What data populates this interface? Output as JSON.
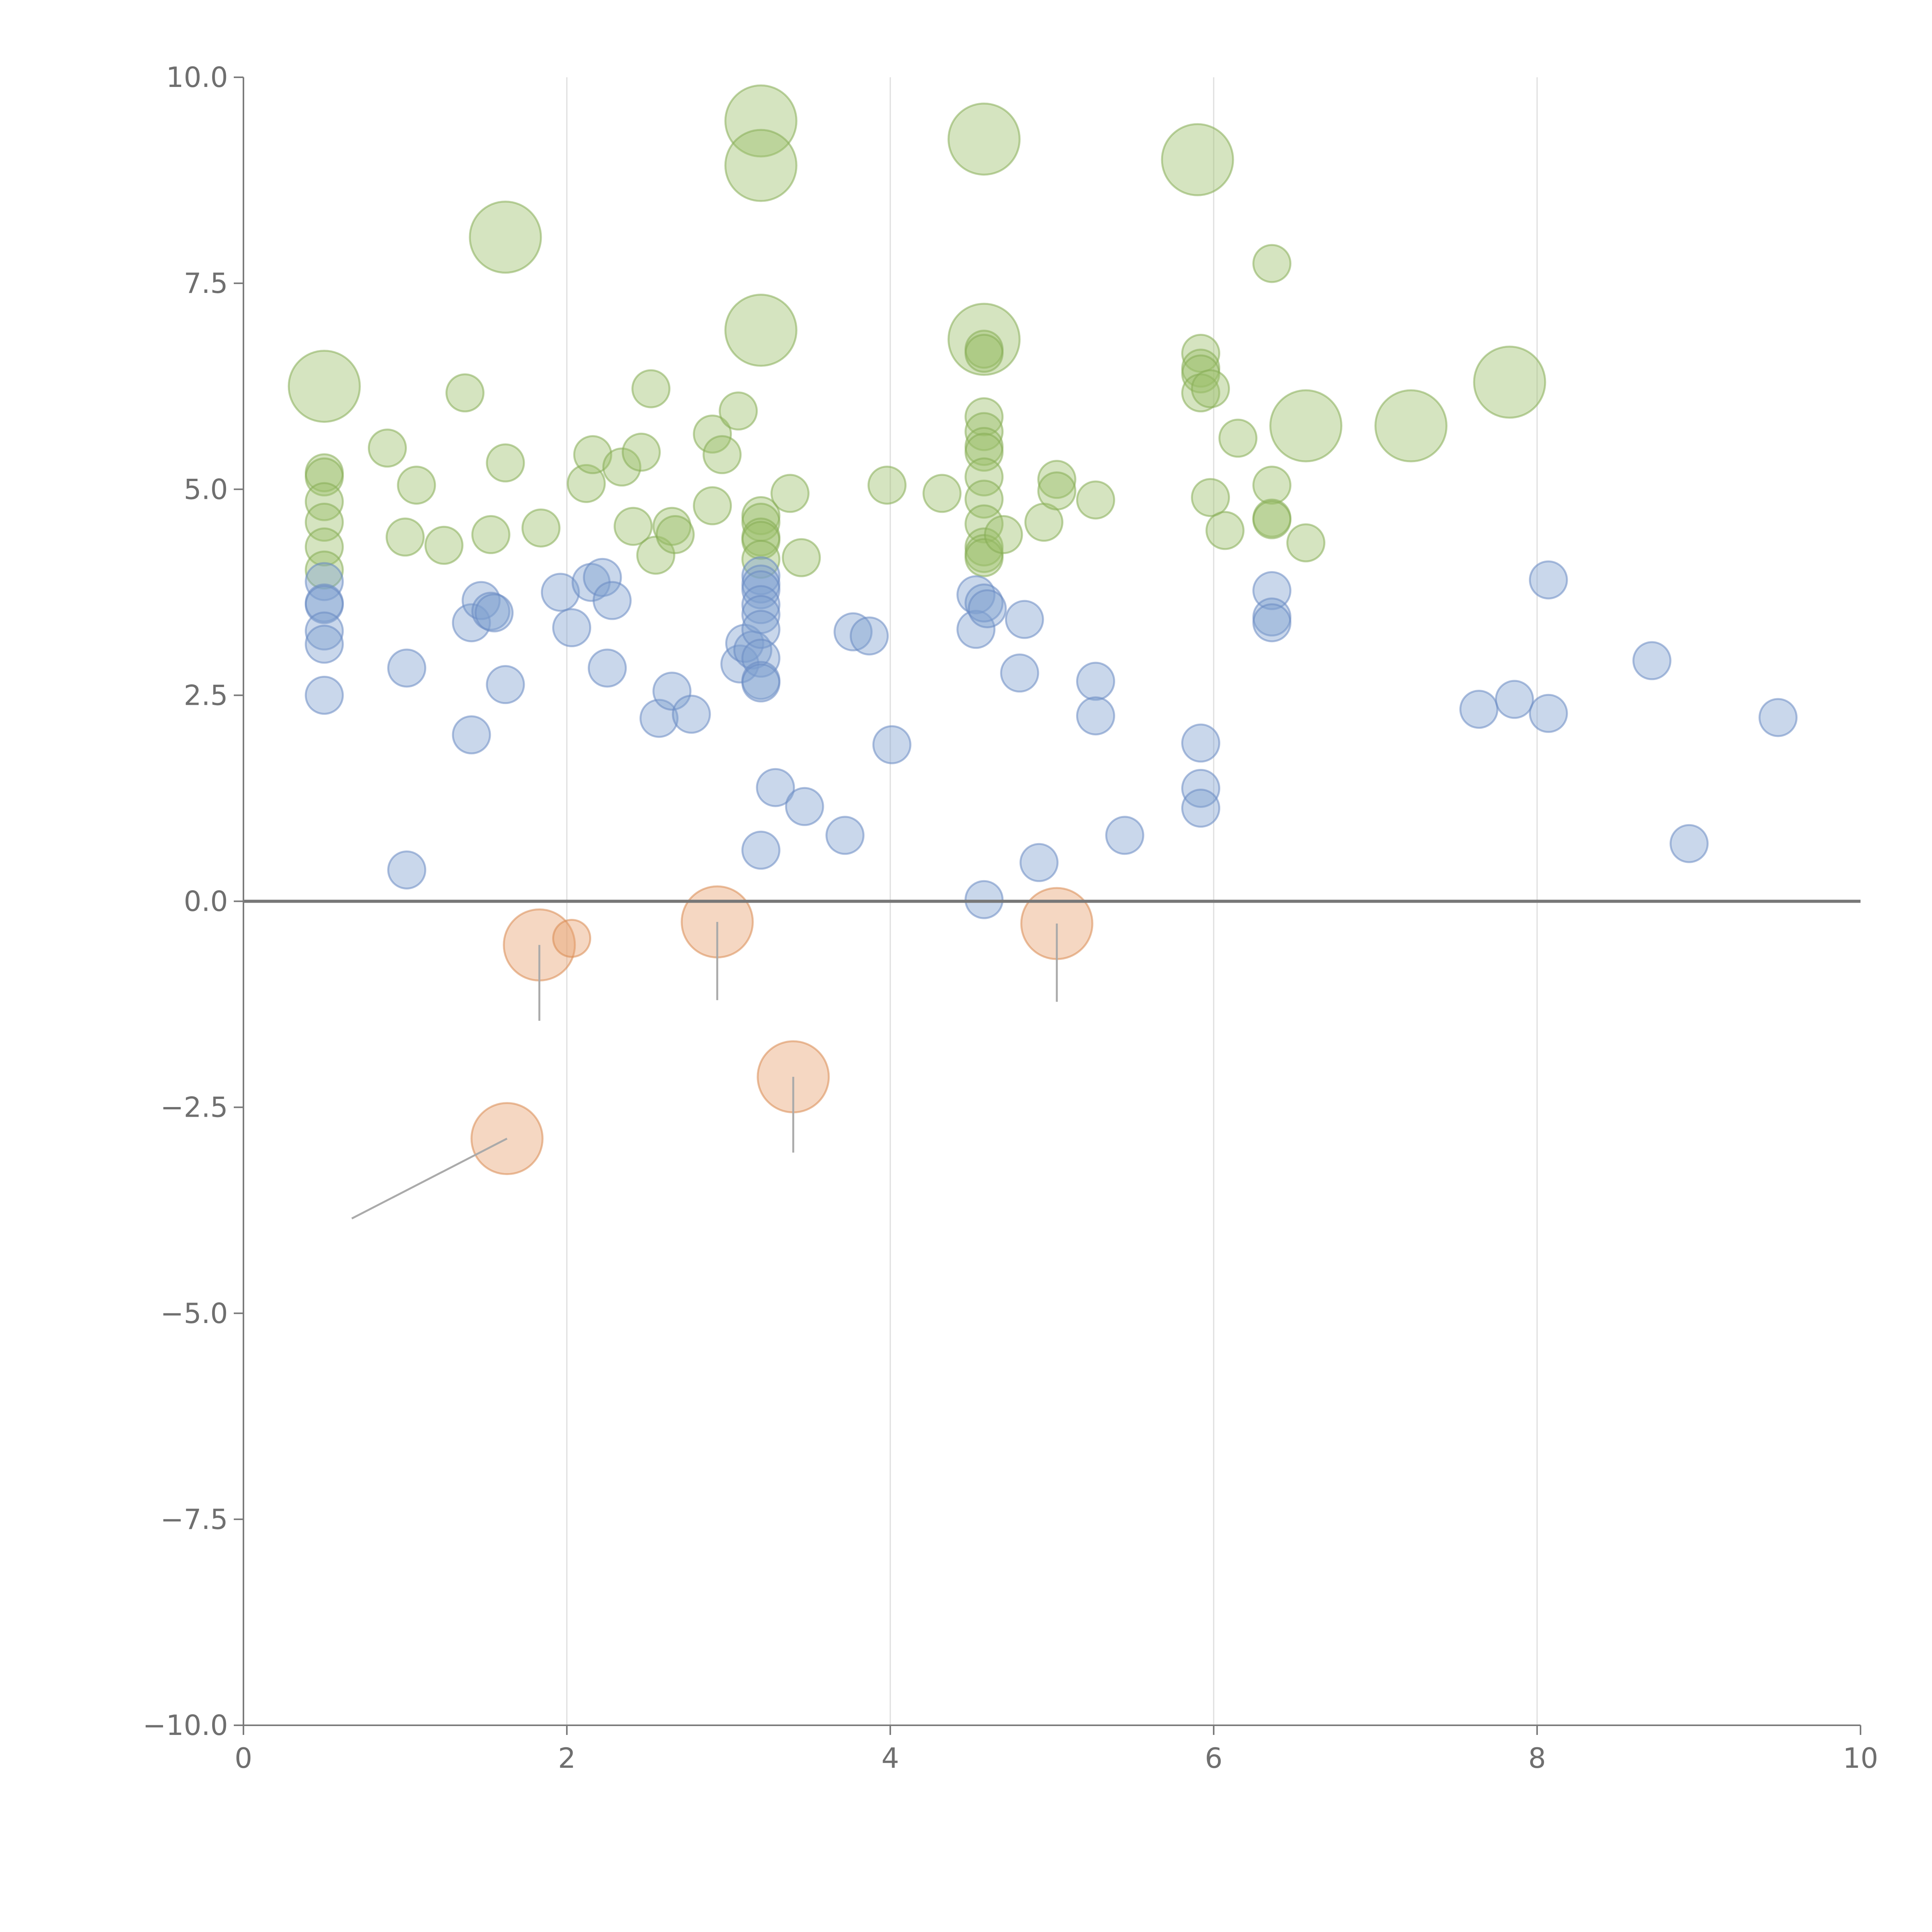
{
  "chart_data": {
    "type": "scatter",
    "title": "",
    "xlabel": "",
    "ylabel": "",
    "xlim": [
      0,
      10
    ],
    "ylim": [
      -10,
      10
    ],
    "x_ticks": [
      0,
      2,
      4,
      6,
      8,
      10
    ],
    "x_tick_labels": [
      "0",
      "2",
      "4",
      "6",
      "8",
      "10"
    ],
    "y_ticks": [
      10,
      7.5,
      5,
      2.5,
      0,
      -2.5,
      -5,
      -7.5,
      -10
    ],
    "y_tick_labels": [
      "10.0",
      "7.5",
      "5.0",
      "2.5",
      "0.0",
      "−2.5",
      "−5.0",
      "−7.5",
      "−10.0"
    ],
    "vertical_grid": [
      2,
      4,
      6,
      8
    ],
    "zero_line": 0,
    "series": [
      {
        "name": "green",
        "color": "#9cbf6a",
        "stroke": "#86ad55",
        "points": [
          [
            0.5,
            6.25,
            2
          ],
          [
            1.62,
            8.06,
            2
          ],
          [
            3.2,
            9.47,
            2
          ],
          [
            3.2,
            8.93,
            2
          ],
          [
            3.2,
            6.93,
            2
          ],
          [
            4.58,
            9.25,
            2
          ],
          [
            4.58,
            6.82,
            2
          ],
          [
            5.9,
            9.0,
            2
          ],
          [
            6.57,
            5.77,
            2
          ],
          [
            7.22,
            5.77,
            2
          ],
          [
            7.83,
            6.3,
            2
          ],
          [
            6.36,
            7.74,
            1
          ],
          [
            0.5,
            5.2,
            1
          ],
          [
            0.5,
            5.15,
            1
          ],
          [
            0.5,
            4.85,
            1
          ],
          [
            0.5,
            4.6,
            1
          ],
          [
            0.5,
            4.3,
            1
          ],
          [
            0.5,
            4.02,
            1
          ],
          [
            0.89,
            5.5,
            1
          ],
          [
            1.07,
            5.05,
            1
          ],
          [
            1.0,
            4.42,
            1
          ],
          [
            1.24,
            4.32,
            1
          ],
          [
            1.37,
            6.17,
            1
          ],
          [
            1.53,
            4.45,
            1
          ],
          [
            1.62,
            5.32,
            1
          ],
          [
            1.84,
            4.53,
            1
          ],
          [
            2.12,
            5.07,
            1
          ],
          [
            2.16,
            5.42,
            1
          ],
          [
            2.34,
            5.27,
            1
          ],
          [
            2.41,
            4.55,
            1
          ],
          [
            2.46,
            5.45,
            1
          ],
          [
            2.52,
            6.22,
            1
          ],
          [
            2.55,
            4.2,
            1
          ],
          [
            2.65,
            4.55,
            1
          ],
          [
            2.67,
            4.45,
            1
          ],
          [
            2.9,
            4.8,
            1
          ],
          [
            2.9,
            5.67,
            1
          ],
          [
            2.96,
            5.42,
            1
          ],
          [
            3.06,
            5.95,
            1
          ],
          [
            3.2,
            4.68,
            1
          ],
          [
            3.2,
            4.6,
            1
          ],
          [
            3.2,
            4.42,
            1
          ],
          [
            3.2,
            4.38,
            1
          ],
          [
            3.2,
            4.15,
            1
          ],
          [
            3.38,
            4.95,
            1
          ],
          [
            3.45,
            4.17,
            1
          ],
          [
            3.98,
            5.05,
            1
          ],
          [
            4.32,
            4.95,
            1
          ],
          [
            4.58,
            6.7,
            1
          ],
          [
            4.58,
            6.65,
            1
          ],
          [
            4.58,
            5.88,
            1
          ],
          [
            4.58,
            5.7,
            1
          ],
          [
            4.58,
            5.52,
            1
          ],
          [
            4.58,
            5.45,
            1
          ],
          [
            4.58,
            5.15,
            1
          ],
          [
            4.58,
            4.88,
            1
          ],
          [
            4.58,
            4.58,
            1
          ],
          [
            4.58,
            4.3,
            1
          ],
          [
            4.58,
            4.22,
            1
          ],
          [
            4.58,
            4.17,
            1
          ],
          [
            4.7,
            4.45,
            1
          ],
          [
            4.95,
            4.6,
            1
          ],
          [
            5.03,
            5.12,
            1
          ],
          [
            5.03,
            4.98,
            1
          ],
          [
            5.27,
            4.87,
            1
          ],
          [
            5.92,
            6.65,
            1
          ],
          [
            5.92,
            6.47,
            1
          ],
          [
            5.92,
            6.4,
            1
          ],
          [
            5.92,
            6.17,
            1
          ],
          [
            5.98,
            6.22,
            1
          ],
          [
            5.98,
            4.9,
            1
          ],
          [
            6.07,
            4.5,
            1
          ],
          [
            6.15,
            5.62,
            1
          ],
          [
            6.36,
            5.05,
            1
          ],
          [
            6.36,
            4.65,
            1
          ],
          [
            6.36,
            4.63,
            1
          ],
          [
            6.57,
            4.35,
            1
          ]
        ]
      },
      {
        "name": "blue",
        "color": "#7f9fd0",
        "stroke": "#6a8bc2",
        "points": [
          [
            0.5,
            3.88,
            1
          ],
          [
            0.5,
            3.62,
            1
          ],
          [
            0.5,
            3.6,
            1
          ],
          [
            0.5,
            3.28,
            1
          ],
          [
            0.5,
            3.12,
            1
          ],
          [
            0.5,
            2.5,
            1
          ],
          [
            1.01,
            2.83,
            1
          ],
          [
            1.01,
            0.38,
            1
          ],
          [
            1.41,
            2.02,
            1
          ],
          [
            1.41,
            3.38,
            1
          ],
          [
            1.47,
            3.65,
            1
          ],
          [
            1.53,
            3.52,
            1
          ],
          [
            1.55,
            3.5,
            1
          ],
          [
            1.62,
            2.63,
            1
          ],
          [
            1.96,
            3.75,
            1
          ],
          [
            2.03,
            3.32,
            1
          ],
          [
            2.15,
            3.87,
            1
          ],
          [
            2.22,
            3.93,
            1
          ],
          [
            2.25,
            2.83,
            1
          ],
          [
            2.28,
            3.65,
            1
          ],
          [
            2.57,
            2.22,
            1
          ],
          [
            2.65,
            2.55,
            1
          ],
          [
            2.77,
            2.27,
            1
          ],
          [
            3.07,
            2.88,
            1
          ],
          [
            3.1,
            3.13,
            1
          ],
          [
            3.15,
            3.05,
            1
          ],
          [
            3.2,
            3.95,
            1
          ],
          [
            3.2,
            3.85,
            1
          ],
          [
            3.2,
            3.78,
            1
          ],
          [
            3.2,
            3.6,
            1
          ],
          [
            3.2,
            3.48,
            1
          ],
          [
            3.2,
            3.3,
            1
          ],
          [
            3.2,
            2.95,
            1
          ],
          [
            3.2,
            2.68,
            1
          ],
          [
            3.2,
            2.65,
            1
          ],
          [
            3.2,
            0.62,
            1
          ],
          [
            3.29,
            1.38,
            1
          ],
          [
            3.47,
            1.15,
            1
          ],
          [
            3.72,
            0.8,
            1
          ],
          [
            3.77,
            3.27,
            1
          ],
          [
            3.87,
            3.22,
            1
          ],
          [
            4.01,
            1.9,
            1
          ],
          [
            4.53,
            3.72,
            1
          ],
          [
            4.53,
            3.3,
            1
          ],
          [
            4.58,
            3.62,
            1
          ],
          [
            4.6,
            3.55,
            1
          ],
          [
            4.58,
            0.02,
            1
          ],
          [
            4.8,
            2.77,
            1
          ],
          [
            4.83,
            3.42,
            1
          ],
          [
            4.92,
            0.47,
            1
          ],
          [
            5.27,
            2.67,
            1
          ],
          [
            5.27,
            2.25,
            1
          ],
          [
            5.45,
            0.8,
            1
          ],
          [
            5.92,
            1.92,
            1
          ],
          [
            5.92,
            1.37,
            1
          ],
          [
            5.92,
            1.13,
            1
          ],
          [
            6.36,
            3.77,
            1
          ],
          [
            6.36,
            3.45,
            1
          ],
          [
            6.36,
            3.38,
            1
          ],
          [
            7.64,
            2.33,
            1
          ],
          [
            7.86,
            2.45,
            1
          ],
          [
            8.07,
            3.9,
            1
          ],
          [
            8.07,
            2.28,
            1
          ],
          [
            8.71,
            2.92,
            1
          ],
          [
            8.94,
            0.7,
            1
          ],
          [
            9.49,
            2.23,
            1
          ]
        ]
      },
      {
        "name": "orange",
        "color": "#e8a06e",
        "stroke": "#d98a52",
        "points": [
          [
            1.83,
            -0.53,
            2
          ],
          [
            2.03,
            -0.45,
            1
          ],
          [
            2.93,
            -0.25,
            2
          ],
          [
            5.03,
            -0.27,
            2
          ],
          [
            3.4,
            -2.13,
            2
          ],
          [
            1.63,
            -2.88,
            2
          ]
        ]
      }
    ],
    "annotations": [
      {
        "from": [
          1.83,
          -0.53
        ],
        "to": [
          1.83,
          -1.45
        ]
      },
      {
        "from": [
          2.93,
          -0.25
        ],
        "to": [
          2.93,
          -1.2
        ]
      },
      {
        "from": [
          5.03,
          -0.27
        ],
        "to": [
          5.03,
          -1.22
        ]
      },
      {
        "from": [
          3.4,
          -2.13
        ],
        "to": [
          3.4,
          -3.05
        ]
      },
      {
        "from": [
          1.63,
          -2.88
        ],
        "to": [
          0.67,
          -3.85
        ]
      }
    ]
  }
}
